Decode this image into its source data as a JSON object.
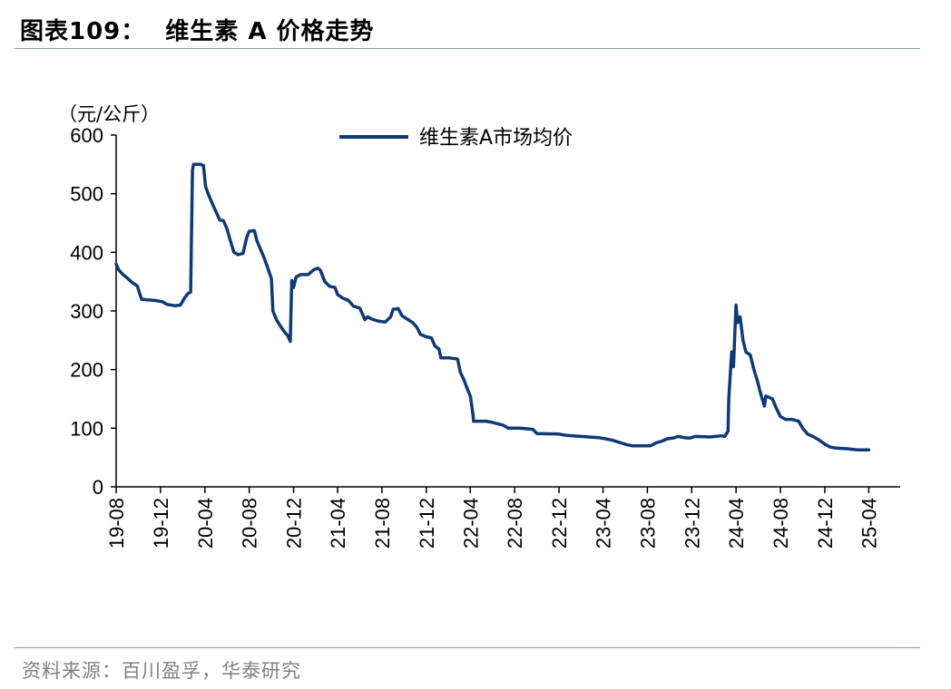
{
  "header": {
    "figure_no": "图表109：",
    "title": "维生素 A 价格走势"
  },
  "footer": {
    "source": "资料来源：百川盈孚，华泰研究"
  },
  "colors": {
    "series": "#0e3a78",
    "axis": "#000000",
    "rule": "#7f9cb8"
  },
  "chart_data": {
    "type": "line",
    "y_unit_label": "（元/公斤）",
    "ylim": [
      0,
      600
    ],
    "yticks": [
      0,
      100,
      200,
      300,
      400,
      500,
      600
    ],
    "x_tick_labels": [
      "19-08",
      "19-12",
      "20-04",
      "20-08",
      "20-12",
      "21-04",
      "21-08",
      "21-12",
      "22-04",
      "22-08",
      "22-12",
      "23-04",
      "23-08",
      "23-12",
      "24-04",
      "24-08",
      "24-12",
      "25-04"
    ],
    "legend_position": "top-center",
    "grid": false,
    "series": [
      {
        "name": "维生素A市场均价",
        "points": [
          [
            "2019-08-01",
            380
          ],
          [
            "2019-08-08",
            370
          ],
          [
            "2019-08-20",
            362
          ],
          [
            "2019-09-01",
            356
          ],
          [
            "2019-09-15",
            348
          ],
          [
            "2019-09-28",
            343
          ],
          [
            "2019-10-10",
            320
          ],
          [
            "2019-10-25",
            319
          ],
          [
            "2019-11-15",
            318
          ],
          [
            "2019-12-05",
            316
          ],
          [
            "2019-12-20",
            311
          ],
          [
            "2020-01-10",
            309
          ],
          [
            "2020-01-25",
            310
          ],
          [
            "2020-02-05",
            322
          ],
          [
            "2020-02-15",
            330
          ],
          [
            "2020-02-22",
            332
          ],
          [
            "2020-02-27",
            540
          ],
          [
            "2020-03-01",
            550
          ],
          [
            "2020-03-20",
            550
          ],
          [
            "2020-03-28",
            548
          ],
          [
            "2020-04-03",
            512
          ],
          [
            "2020-04-10",
            500
          ],
          [
            "2020-04-18",
            488
          ],
          [
            "2020-05-01",
            470
          ],
          [
            "2020-05-12",
            455
          ],
          [
            "2020-05-22",
            454
          ],
          [
            "2020-06-01",
            440
          ],
          [
            "2020-06-10",
            420
          ],
          [
            "2020-06-20",
            400
          ],
          [
            "2020-07-01",
            396
          ],
          [
            "2020-07-15",
            398
          ],
          [
            "2020-07-25",
            425
          ],
          [
            "2020-08-01",
            436
          ],
          [
            "2020-08-15",
            437
          ],
          [
            "2020-08-22",
            420
          ],
          [
            "2020-09-01",
            405
          ],
          [
            "2020-09-10",
            392
          ],
          [
            "2020-09-20",
            375
          ],
          [
            "2020-10-01",
            355
          ],
          [
            "2020-10-05",
            300
          ],
          [
            "2020-10-15",
            285
          ],
          [
            "2020-10-25",
            275
          ],
          [
            "2020-11-05",
            265
          ],
          [
            "2020-11-15",
            258
          ],
          [
            "2020-11-22",
            248
          ],
          [
            "2020-11-26",
            352
          ],
          [
            "2020-12-01",
            340
          ],
          [
            "2020-12-08",
            358
          ],
          [
            "2020-12-20",
            362
          ],
          [
            "2021-01-10",
            362
          ],
          [
            "2021-01-25",
            370
          ],
          [
            "2021-02-05",
            373
          ],
          [
            "2021-02-12",
            370
          ],
          [
            "2021-02-25",
            350
          ],
          [
            "2021-03-10",
            342
          ],
          [
            "2021-03-25",
            340
          ],
          [
            "2021-04-01",
            328
          ],
          [
            "2021-04-15",
            322
          ],
          [
            "2021-05-01",
            318
          ],
          [
            "2021-05-15",
            308
          ],
          [
            "2021-06-01",
            305
          ],
          [
            "2021-06-08",
            295
          ],
          [
            "2021-06-15",
            285
          ],
          [
            "2021-06-22",
            290
          ],
          [
            "2021-07-05",
            286
          ],
          [
            "2021-07-20",
            283
          ],
          [
            "2021-08-10",
            281
          ],
          [
            "2021-08-25",
            290
          ],
          [
            "2021-09-01",
            303
          ],
          [
            "2021-09-15",
            304
          ],
          [
            "2021-09-25",
            292
          ],
          [
            "2021-10-10",
            286
          ],
          [
            "2021-10-25",
            280
          ],
          [
            "2021-11-05",
            272
          ],
          [
            "2021-11-15",
            260
          ],
          [
            "2021-12-01",
            256
          ],
          [
            "2021-12-15",
            254
          ],
          [
            "2021-12-25",
            240
          ],
          [
            "2022-01-05",
            235
          ],
          [
            "2022-01-10",
            220
          ],
          [
            "2022-02-01",
            220
          ],
          [
            "2022-02-25",
            218
          ],
          [
            "2022-03-05",
            195
          ],
          [
            "2022-03-15",
            182
          ],
          [
            "2022-03-25",
            165
          ],
          [
            "2022-04-01",
            155
          ],
          [
            "2022-04-08",
            125
          ],
          [
            "2022-04-10",
            112
          ],
          [
            "2022-05-15",
            112
          ],
          [
            "2022-06-01",
            110
          ],
          [
            "2022-07-01",
            105
          ],
          [
            "2022-07-15",
            100
          ],
          [
            "2022-08-15",
            100
          ],
          [
            "2022-09-20",
            98
          ],
          [
            "2022-10-01",
            91
          ],
          [
            "2022-12-01",
            90
          ],
          [
            "2022-12-20",
            88
          ],
          [
            "2023-01-30",
            86
          ],
          [
            "2023-03-20",
            84
          ],
          [
            "2023-04-25",
            80
          ],
          [
            "2023-05-20",
            75
          ],
          [
            "2023-06-05",
            72
          ],
          [
            "2023-06-20",
            70
          ],
          [
            "2023-07-20",
            70
          ],
          [
            "2023-08-10",
            70
          ],
          [
            "2023-08-25",
            75
          ],
          [
            "2023-09-10",
            78
          ],
          [
            "2023-09-25",
            82
          ],
          [
            "2023-10-10",
            83
          ],
          [
            "2023-10-25",
            86
          ],
          [
            "2023-11-10",
            84
          ],
          [
            "2023-11-25",
            83
          ],
          [
            "2023-12-10",
            86
          ],
          [
            "2024-01-20",
            85
          ],
          [
            "2024-02-20",
            87
          ],
          [
            "2024-03-01",
            86
          ],
          [
            "2024-03-10",
            95
          ],
          [
            "2024-03-12",
            150
          ],
          [
            "2024-03-15",
            180
          ],
          [
            "2024-03-20",
            230
          ],
          [
            "2024-03-25",
            205
          ],
          [
            "2024-04-01",
            310
          ],
          [
            "2024-04-05",
            280
          ],
          [
            "2024-04-12",
            290
          ],
          [
            "2024-04-20",
            250
          ],
          [
            "2024-04-28",
            230
          ],
          [
            "2024-05-10",
            225
          ],
          [
            "2024-05-20",
            200
          ],
          [
            "2024-05-30",
            180
          ],
          [
            "2024-06-05",
            165
          ],
          [
            "2024-06-12",
            150
          ],
          [
            "2024-06-18",
            138
          ],
          [
            "2024-06-22",
            155
          ],
          [
            "2024-07-10",
            150
          ],
          [
            "2024-07-20",
            135
          ],
          [
            "2024-08-01",
            120
          ],
          [
            "2024-08-15",
            115
          ],
          [
            "2024-09-01",
            115
          ],
          [
            "2024-09-20",
            112
          ],
          [
            "2024-10-01",
            100
          ],
          [
            "2024-10-15",
            90
          ],
          [
            "2024-11-01",
            85
          ],
          [
            "2024-11-15",
            80
          ],
          [
            "2024-12-01",
            73
          ],
          [
            "2024-12-15",
            68
          ],
          [
            "2025-01-01",
            66
          ],
          [
            "2025-02-01",
            65
          ],
          [
            "2025-03-01",
            63
          ],
          [
            "2025-04-01",
            63
          ]
        ]
      }
    ]
  }
}
